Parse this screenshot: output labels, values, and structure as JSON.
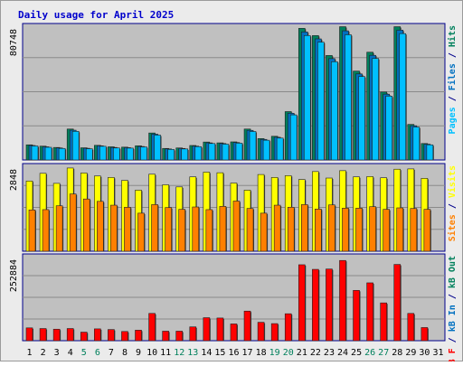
{
  "chart_data": {
    "type": "bar",
    "title": "Daily usage for April 2025",
    "categories": [
      "1",
      "2",
      "3",
      "4",
      "5",
      "6",
      "7",
      "8",
      "9",
      "10",
      "11",
      "12",
      "13",
      "14",
      "15",
      "16",
      "17",
      "18",
      "19",
      "20",
      "21",
      "22",
      "23",
      "24",
      "25",
      "26",
      "27",
      "28",
      "29",
      "30",
      "31"
    ],
    "weekend_days": [
      "5",
      "6",
      "12",
      "13",
      "19",
      "20",
      "26",
      "27"
    ],
    "panels": [
      {
        "name": "pages-files-hits",
        "max_label": "80748",
        "ymax": 80748,
        "right_label": [
          {
            "text": "Pages",
            "color": "#00c0ff"
          },
          {
            "text": " / ",
            "color": "#00008b"
          },
          {
            "text": "Files",
            "color": "#0070c0"
          },
          {
            "text": " / ",
            "color": "#00008b"
          },
          {
            "text": "Hits",
            "color": "#00805c"
          }
        ],
        "series": [
          {
            "key": "hits",
            "color": "#00805c",
            "values": [
              9200,
              8400,
              7600,
              18800,
              7400,
              8900,
              8000,
              7800,
              8600,
              16400,
              7000,
              7300,
              8800,
              10900,
              10400,
              11000,
              18800,
              13000,
              14400,
              29400,
              80000,
              75600,
              63500,
              81000,
              54000,
              65500,
              41300,
              81000,
              21600,
              10000,
              null
            ]
          },
          {
            "key": "files",
            "color": "#0070c0",
            "values": [
              8800,
              8000,
              7300,
              18100,
              7100,
              8600,
              7600,
              7500,
              8200,
              15700,
              6700,
              7000,
              8400,
              10400,
              10000,
              10600,
              18000,
              12500,
              13800,
              28400,
              77800,
              73600,
              61600,
              78500,
              52300,
              63600,
              40000,
              78900,
              20800,
              9600,
              null
            ]
          },
          {
            "key": "pages",
            "color": "#00c0ff",
            "values": [
              8500,
              7700,
              7000,
              17400,
              6800,
              8300,
              7300,
              7200,
              7900,
              15100,
              6400,
              6700,
              8100,
              10000,
              9600,
              10200,
              17300,
              12000,
              13300,
              27400,
              75600,
              71600,
              59700,
              76100,
              50700,
              61700,
              38800,
              76800,
              20000,
              9200,
              null
            ]
          }
        ]
      },
      {
        "name": "visits-sites",
        "max_label": "2848",
        "ymax": 2848,
        "right_label": [
          {
            "text": "Sites",
            "color": "#ff8000"
          },
          {
            "text": " / ",
            "color": "#00008b"
          },
          {
            "text": "Visits",
            "color": "#ffff00"
          }
        ],
        "series": [
          {
            "key": "visits",
            "color": "#ffff00",
            "values": [
              2380,
              2640,
              2300,
              2820,
              2650,
              2550,
              2500,
              2400,
              2070,
              2610,
              2250,
              2180,
              2520,
              2680,
              2660,
              2310,
              2070,
              2600,
              2500,
              2560,
              2430,
              2700,
              2480,
              2730,
              2520,
              2530,
              2490,
              2780,
              2790,
              2470,
              null
            ]
          },
          {
            "key": "sites",
            "color": "#ff8000",
            "values": [
              1400,
              1410,
              1540,
              1940,
              1770,
              1690,
              1560,
              1490,
              1290,
              1580,
              1480,
              1420,
              1500,
              1410,
              1520,
              1700,
              1450,
              1290,
              1560,
              1490,
              1580,
              1430,
              1570,
              1460,
              1460,
              1510,
              1420,
              1470,
              1450,
              1420,
              null
            ]
          }
        ]
      },
      {
        "name": "kb-in-out-f",
        "max_label": "252884",
        "ymax": 252884,
        "right_label": [
          {
            "text": "kB F",
            "color": "#ff0000"
          },
          {
            "text": " / ",
            "color": "#00008b"
          },
          {
            "text": "kB In",
            "color": "#0070c0"
          },
          {
            "text": " / ",
            "color": "#00008b"
          },
          {
            "text": "kB Out",
            "color": "#00805c"
          }
        ],
        "series": [
          {
            "key": "kb_f",
            "color": "#ff0000",
            "values": [
              39000,
              37000,
              35000,
              37000,
              26000,
              36000,
              34000,
              28000,
              32000,
              83000,
              29000,
              29000,
              42000,
              70000,
              69000,
              51000,
              90000,
              56000,
              52000,
              82000,
              231000,
              217000,
              218000,
              244000,
              153000,
              176000,
              115000,
              232000,
              83000,
              40000,
              null
            ]
          }
        ]
      }
    ],
    "grid": true,
    "background": "#c0c0c0",
    "border": "#00008b"
  }
}
